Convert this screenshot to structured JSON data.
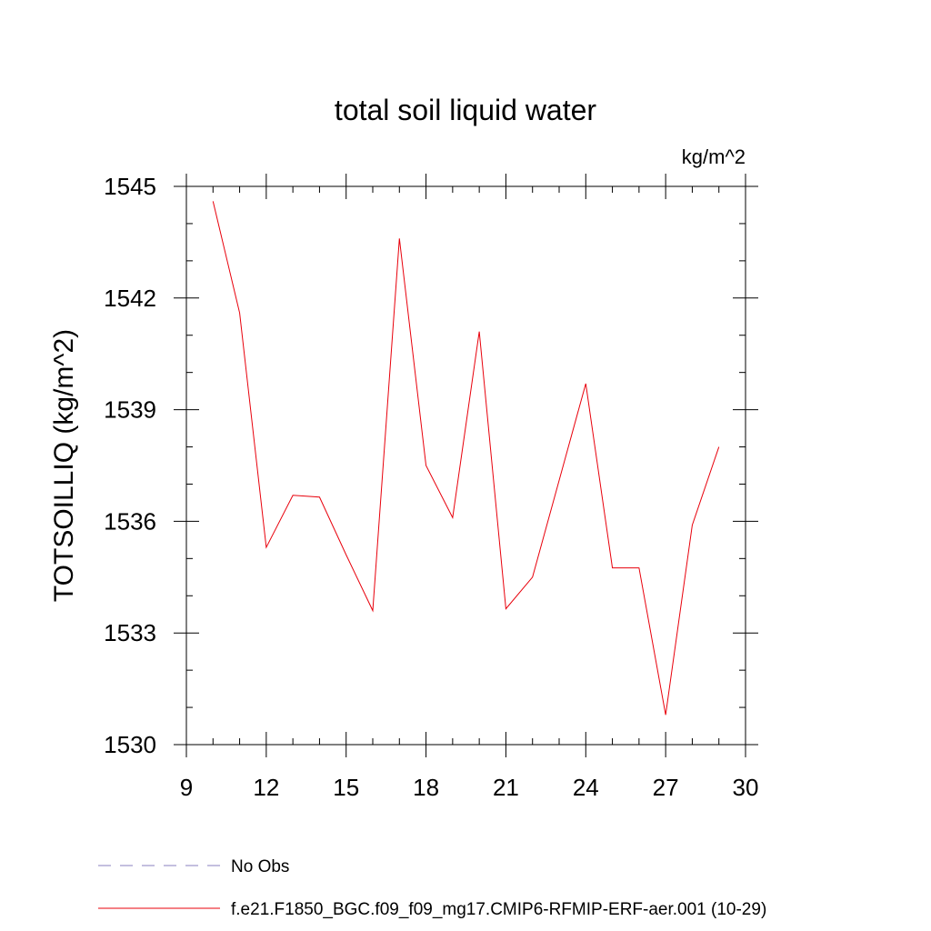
{
  "chart_data": {
    "type": "line",
    "title": "total soil liquid water",
    "units_label": "kg/m^2",
    "xlabel": "",
    "ylabel": "TOTSOILLIQ  (kg/m^2)",
    "xlim": [
      9,
      30
    ],
    "ylim": [
      1530,
      1545
    ],
    "xticks": [
      9,
      12,
      15,
      18,
      21,
      24,
      27,
      30
    ],
    "yticks": [
      1530,
      1533,
      1536,
      1539,
      1542,
      1545
    ],
    "xticks_minor": [
      10,
      11,
      13,
      14,
      16,
      17,
      19,
      20,
      22,
      23,
      25,
      26,
      28,
      29
    ],
    "yticks_minor": [
      1531,
      1532,
      1534,
      1535,
      1537,
      1538,
      1540,
      1541,
      1543,
      1544
    ],
    "grid": false,
    "series": [
      {
        "name": "f.e21.F1850_BGC.f09_f09_mg17.CMIP6-RFMIP-ERF-aer.001 (10-29)",
        "color": "#e8000b",
        "dash": "solid",
        "x": [
          10,
          11,
          12,
          13,
          14,
          15,
          16,
          17,
          18,
          19,
          20,
          21,
          22,
          23,
          24,
          25,
          26,
          27,
          28,
          29
        ],
        "values": [
          1544.6,
          1541.6,
          1535.3,
          1536.7,
          1536.65,
          1535.1,
          1533.6,
          1543.6,
          1537.5,
          1536.1,
          1541.1,
          1533.65,
          1534.5,
          1537.1,
          1539.7,
          1534.75,
          1534.75,
          1530.8,
          1535.9,
          1538.0
        ]
      }
    ],
    "legend": {
      "placement": "bottom-left",
      "entries": [
        {
          "label": "No Obs",
          "color": "#8a7fbf",
          "dash": "dashed"
        },
        {
          "label": "f.e21.F1850_BGC.f09_f09_mg17.CMIP6-RFMIP-ERF-aer.001 (10-29)",
          "color": "#e8000b",
          "dash": "solid"
        }
      ]
    }
  }
}
